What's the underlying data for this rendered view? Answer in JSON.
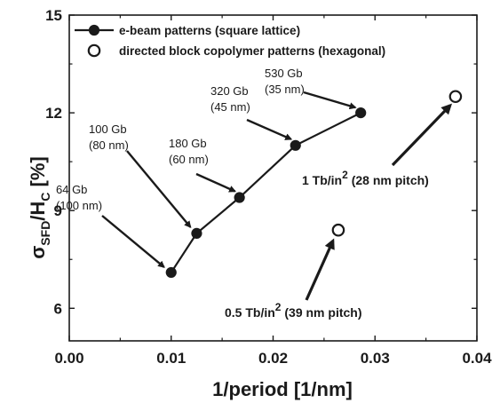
{
  "chart_data": {
    "type": "scatter",
    "xlabel": "1/period [1/nm]",
    "ylabel": "σSFD/HC [%]",
    "xlim": [
      0.0,
      0.04
    ],
    "ylim": [
      5,
      15
    ],
    "x_ticks": [
      "0.00",
      "0.01",
      "0.02",
      "0.03",
      "0.04"
    ],
    "y_ticks": [
      "6",
      "9",
      "12",
      "15"
    ],
    "grid": false,
    "legend_position": "top-left",
    "series": [
      {
        "name": "e-beam patterns (square lattice)",
        "marker": "filled-circle",
        "line": true,
        "x": [
          0.01,
          0.0125,
          0.0167,
          0.0222,
          0.0286
        ],
        "y": [
          7.1,
          8.3,
          9.4,
          11.0,
          12.0
        ]
      },
      {
        "name": "directed block copolymer patterns (hexagonal)",
        "marker": "open-circle",
        "line": false,
        "x": [
          0.0264,
          0.0379
        ],
        "y": [
          8.4,
          12.5
        ]
      }
    ],
    "annotations": [
      {
        "line1": "64 Gb",
        "line2": "(100 nm)"
      },
      {
        "line1": "100 Gb",
        "line2": "(80 nm)"
      },
      {
        "line1": "180 Gb",
        "line2": "(60 nm)"
      },
      {
        "line1": "320 Gb",
        "line2": "(45 nm)"
      },
      {
        "line1": "530 Gb",
        "line2": "(35 nm)"
      }
    ],
    "bcp_annotations": [
      {
        "prefix": "0.5 Tb/in",
        "sup": "2",
        "suffix": " (39 nm pitch)"
      },
      {
        "prefix": "1 Tb/in",
        "sup": "2",
        "suffix": " (28 nm pitch)"
      }
    ],
    "colors": {
      "ink": "#1a1a1a",
      "background": "#ffffff"
    }
  }
}
